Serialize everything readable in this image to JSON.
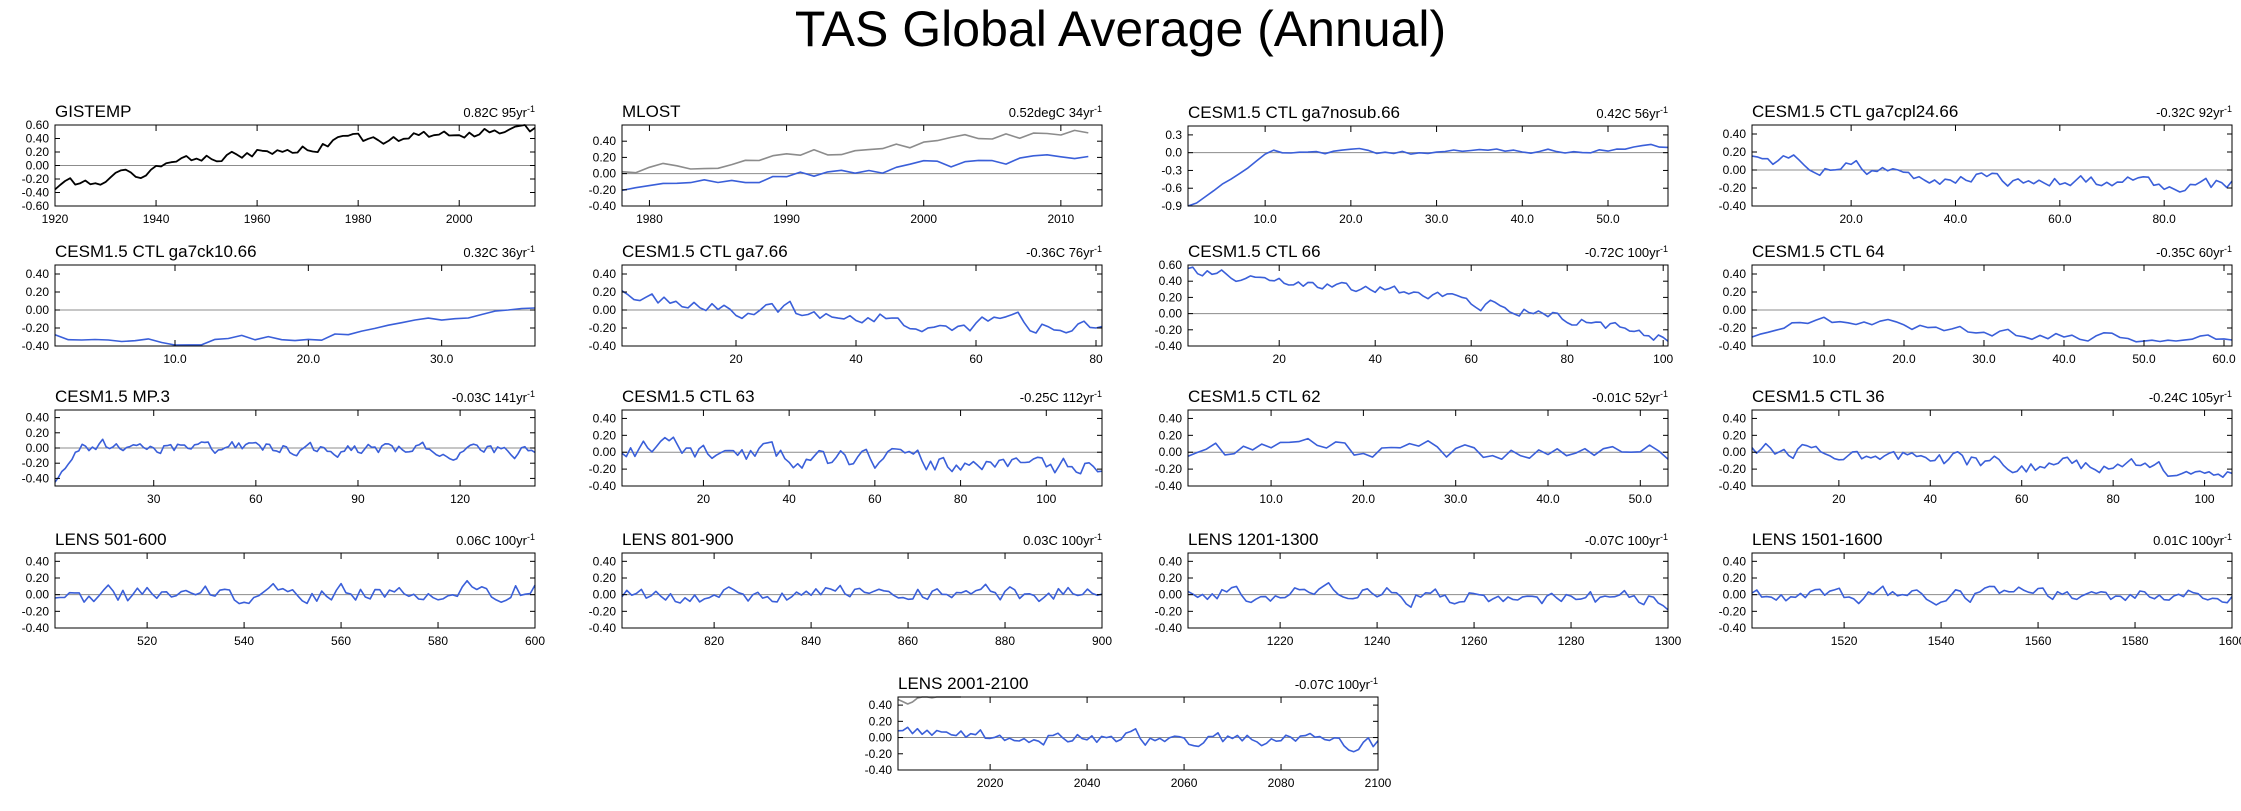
{
  "title": "TAS Global Average (Annual)",
  "colors": {
    "obs": "#000000",
    "mlost_obs": "#8c8c8c",
    "model": "#3a5fd9",
    "zero_line": "#8c8c8c",
    "axis": "#000000"
  },
  "chart_data": [
    {
      "type": "line",
      "title": "GISTEMP",
      "annotation": "0.82C 95yr",
      "annotation_sup": "-1",
      "xlim": [
        1920,
        2015
      ],
      "ylim": [
        -0.6,
        0.6
      ],
      "xticks": [
        1920,
        1940,
        1960,
        1980,
        2000
      ],
      "xtick_labels": [
        "1920",
        "1940",
        "1960",
        "1980",
        "2000"
      ],
      "yticks": [
        -0.6,
        -0.4,
        -0.2,
        0,
        0.2,
        0.4,
        0.6
      ],
      "ytick_labels": [
        "-0.60",
        "-0.40",
        "-0.20",
        "0.00",
        "0.20",
        "0.40",
        "0.60"
      ],
      "series": [
        {
          "color": "#000000",
          "gen": {
            "a": -0.35,
            "b": 0.52,
            "curv": 0.35,
            "amp": 0.07,
            "seed": 1,
            "n": 96,
            "x0": 1920,
            "x1": 2015
          }
        }
      ]
    },
    {
      "type": "line",
      "title": "MLOST",
      "annotation": "0.52degC 34yr",
      "annotation_sup": "-1",
      "xlim": [
        1978,
        2013
      ],
      "ylim": [
        -0.4,
        0.6
      ],
      "xticks": [
        1980,
        1990,
        2000,
        2010
      ],
      "xtick_labels": [
        "1980",
        "1990",
        "2000",
        "2010"
      ],
      "yticks": [
        -0.4,
        -0.2,
        0,
        0.2,
        0.4
      ],
      "ytick_labels": [
        "-0.40",
        "-0.20",
        "0.00",
        "0.20",
        "0.40"
      ],
      "series": [
        {
          "color": "#8c8c8c",
          "gen": {
            "a": 0.02,
            "b": 0.52,
            "curv": 0,
            "amp": 0.06,
            "seed": 2,
            "n": 35,
            "x0": 1978,
            "x1": 2012
          }
        },
        {
          "color": "#3a5fd9",
          "gen": {
            "a": -0.22,
            "b": 0.22,
            "curv": 0,
            "amp": 0.06,
            "seed": 3,
            "n": 35,
            "x0": 1978,
            "x1": 2012
          }
        }
      ]
    },
    {
      "type": "line",
      "title": "CESM1.5 CTL ga7nosub.66",
      "annotation": "0.42C 56yr",
      "annotation_sup": "-1",
      "xlim": [
        1,
        57
      ],
      "ylim": [
        -0.9,
        0.45
      ],
      "xticks": [
        10,
        20,
        30,
        40,
        50
      ],
      "xtick_labels": [
        "10.0",
        "20.0",
        "30.0",
        "40.0",
        "50.0"
      ],
      "yticks": [
        -0.9,
        -0.6,
        -0.3,
        0,
        0.3
      ],
      "ytick_labels": [
        "-0.9",
        "-0.6",
        "-0.3",
        "0.0",
        "0.3"
      ],
      "series": [
        {
          "color": "#3a5fd9",
          "gen": {
            "a": 0.08,
            "b": 0.12,
            "curv": -0.2,
            "amp": 0.04,
            "seed": 4,
            "n": 57,
            "x0": 1,
            "x1": 57,
            "spin": -0.95,
            "spin_len": 10
          }
        }
      ]
    },
    {
      "type": "line",
      "title": "CESM1.5 CTL ga7cpl24.66",
      "annotation": "-0.32C 92yr",
      "annotation_sup": "-1",
      "xlim": [
        1,
        93
      ],
      "ylim": [
        -0.4,
        0.5
      ],
      "xticks": [
        20,
        40,
        60,
        80
      ],
      "xtick_labels": [
        "20.0",
        "40.0",
        "60.0",
        "80.0"
      ],
      "yticks": [
        -0.4,
        -0.2,
        0,
        0.2,
        0.4
      ],
      "ytick_labels": [
        "-0.40",
        "-0.20",
        "0.00",
        "0.20",
        "0.40"
      ],
      "series": [
        {
          "color": "#3a5fd9",
          "gen": {
            "a": 0.12,
            "b": -0.18,
            "curv": -0.15,
            "amp": 0.07,
            "seed": 5,
            "n": 93,
            "x0": 1,
            "x1": 93
          }
        }
      ]
    },
    {
      "type": "line",
      "title": "CESM1.5 CTL ga7ck10.66",
      "annotation": "0.32C 36yr",
      "annotation_sup": "-1",
      "xlim": [
        1,
        37
      ],
      "ylim": [
        -0.4,
        0.5
      ],
      "xticks": [
        10,
        20,
        30
      ],
      "xtick_labels": [
        "10.0",
        "20.0",
        "30.0"
      ],
      "yticks": [
        -0.4,
        -0.2,
        0,
        0.2,
        0.4
      ],
      "ytick_labels": [
        "-0.40",
        "-0.20",
        "0.00",
        "0.20",
        "0.40"
      ],
      "series": [
        {
          "color": "#3a5fd9",
          "gen": {
            "a": -0.3,
            "b": 0.05,
            "curv": -0.35,
            "amp": 0.04,
            "seed": 6,
            "n": 37,
            "x0": 1,
            "x1": 37
          }
        }
      ]
    },
    {
      "type": "line",
      "title": "CESM1.5 CTL ga7.66",
      "annotation": "-0.36C 76yr",
      "annotation_sup": "-1",
      "xlim": [
        1,
        81
      ],
      "ylim": [
        -0.4,
        0.5
      ],
      "xticks": [
        20,
        40,
        60,
        80
      ],
      "xtick_labels": [
        "20",
        "40",
        "60",
        "80"
      ],
      "yticks": [
        -0.4,
        -0.2,
        0,
        0.2,
        0.4
      ],
      "ytick_labels": [
        "-0.40",
        "-0.20",
        "0.00",
        "0.20",
        "0.40"
      ],
      "series": [
        {
          "color": "#3a5fd9",
          "gen": {
            "a": 0.15,
            "b": -0.2,
            "curv": -0.1,
            "amp": 0.08,
            "seed": 7,
            "n": 81,
            "x0": 1,
            "x1": 81
          }
        }
      ]
    },
    {
      "type": "line",
      "title": "CESM1.5 CTL 66",
      "annotation": "-0.72C 100yr",
      "annotation_sup": "-1",
      "xlim": [
        1,
        101
      ],
      "ylim": [
        -0.4,
        0.6
      ],
      "xticks": [
        20,
        40,
        60,
        80,
        100
      ],
      "xtick_labels": [
        "20",
        "40",
        "60",
        "80",
        "100"
      ],
      "yticks": [
        -0.4,
        -0.2,
        0,
        0.2,
        0.4,
        0.6
      ],
      "ytick_labels": [
        "-0.40",
        "-0.20",
        "0.00",
        "0.20",
        "0.40",
        "0.60"
      ],
      "series": [
        {
          "color": "#3a5fd9",
          "gen": {
            "a": 0.5,
            "b": -0.3,
            "curv": 0.25,
            "amp": 0.06,
            "seed": 8,
            "n": 101,
            "x0": 1,
            "x1": 101
          }
        }
      ]
    },
    {
      "type": "line",
      "title": "CESM1.5 CTL 64",
      "annotation": "-0.35C 60yr",
      "annotation_sup": "-1",
      "xlim": [
        1,
        61
      ],
      "ylim": [
        -0.4,
        0.5
      ],
      "xticks": [
        10,
        20,
        30,
        40,
        50,
        60
      ],
      "xtick_labels": [
        "10.0",
        "20.0",
        "30.0",
        "40.0",
        "50.0",
        "60.0"
      ],
      "yticks": [
        -0.4,
        -0.2,
        0,
        0.2,
        0.4
      ],
      "ytick_labels": [
        "-0.40",
        "-0.20",
        "0.00",
        "0.20",
        "0.40"
      ],
      "series": [
        {
          "color": "#3a5fd9",
          "gen": {
            "a": 0.0,
            "b": -0.3,
            "curv": -0.2,
            "amp": 0.05,
            "seed": 9,
            "n": 61,
            "x0": 1,
            "x1": 61,
            "spin": -0.3,
            "spin_len": 8
          }
        }
      ]
    },
    {
      "type": "line",
      "title": "CESM1.5 MP.3",
      "annotation": "-0.03C 141yr",
      "annotation_sup": "-1",
      "xlim": [
        1,
        142
      ],
      "ylim": [
        -0.5,
        0.5
      ],
      "xticks": [
        30,
        60,
        90,
        120
      ],
      "xtick_labels": [
        "30",
        "60",
        "90",
        "120"
      ],
      "yticks": [
        -0.4,
        -0.2,
        0,
        0.2,
        0.4
      ],
      "ytick_labels": [
        "-0.40",
        "-0.20",
        "0.00",
        "0.20",
        "0.40"
      ],
      "series": [
        {
          "color": "#3a5fd9",
          "gen": {
            "a": 0.05,
            "b": -0.05,
            "curv": 0,
            "amp": 0.07,
            "seed": 10,
            "n": 142,
            "x0": 1,
            "x1": 142,
            "spin": -0.45,
            "spin_len": 8
          }
        }
      ]
    },
    {
      "type": "line",
      "title": "CESM1.5 CTL 63",
      "annotation": "-0.25C 112yr",
      "annotation_sup": "-1",
      "xlim": [
        1,
        113
      ],
      "ylim": [
        -0.4,
        0.5
      ],
      "xticks": [
        20,
        40,
        60,
        80,
        100
      ],
      "xtick_labels": [
        "20",
        "40",
        "60",
        "80",
        "100"
      ],
      "yticks": [
        -0.4,
        -0.2,
        0,
        0.2,
        0.4
      ],
      "ytick_labels": [
        "-0.40",
        "-0.20",
        "0.00",
        "0.20",
        "0.40"
      ],
      "series": [
        {
          "color": "#3a5fd9",
          "gen": {
            "a": 0.05,
            "b": -0.15,
            "curv": -0.1,
            "amp": 0.1,
            "seed": 11,
            "n": 113,
            "x0": 1,
            "x1": 113
          }
        }
      ]
    },
    {
      "type": "line",
      "title": "CESM1.5 CTL 62",
      "annotation": "-0.01C 52yr",
      "annotation_sup": "-1",
      "xlim": [
        1,
        53
      ],
      "ylim": [
        -0.4,
        0.5
      ],
      "xticks": [
        10,
        20,
        30,
        40,
        50
      ],
      "xtick_labels": [
        "10.0",
        "20.0",
        "30.0",
        "40.0",
        "50.0"
      ],
      "yticks": [
        -0.4,
        -0.2,
        0,
        0.2,
        0.4
      ],
      "ytick_labels": [
        "-0.40",
        "-0.20",
        "0.00",
        "0.20",
        "0.40"
      ],
      "series": [
        {
          "color": "#3a5fd9",
          "gen": {
            "a": 0.0,
            "b": 0.0,
            "curv": 0,
            "amp": 0.1,
            "seed": 12,
            "n": 53,
            "x0": 1,
            "x1": 53
          }
        }
      ]
    },
    {
      "type": "line",
      "title": "CESM1.5 CTL 36",
      "annotation": "-0.24C 105yr",
      "annotation_sup": "-1",
      "xlim": [
        1,
        106
      ],
      "ylim": [
        -0.4,
        0.5
      ],
      "xticks": [
        20,
        40,
        60,
        80,
        100
      ],
      "xtick_labels": [
        "20",
        "40",
        "60",
        "80",
        "100"
      ],
      "yticks": [
        -0.4,
        -0.2,
        0,
        0.2,
        0.4
      ],
      "ytick_labels": [
        "-0.40",
        "-0.20",
        "0.00",
        "0.20",
        "0.40"
      ],
      "series": [
        {
          "color": "#3a5fd9",
          "gen": {
            "a": 0.08,
            "b": -0.22,
            "curv": -0.1,
            "amp": 0.08,
            "seed": 13,
            "n": 106,
            "x0": 1,
            "x1": 106
          }
        }
      ]
    },
    {
      "type": "line",
      "title": "LENS 501-600",
      "annotation": "0.06C 100yr",
      "annotation_sup": "-1",
      "xlim": [
        501,
        600
      ],
      "ylim": [
        -0.4,
        0.5
      ],
      "xticks": [
        520,
        540,
        560,
        580,
        600
      ],
      "xtick_labels": [
        "520",
        "540",
        "560",
        "580",
        "600"
      ],
      "yticks": [
        -0.4,
        -0.2,
        0,
        0.2,
        0.4
      ],
      "ytick_labels": [
        "-0.40",
        "-0.20",
        "0.00",
        "0.20",
        "0.40"
      ],
      "series": [
        {
          "color": "#3a5fd9",
          "gen": {
            "a": -0.02,
            "b": 0.06,
            "curv": 0,
            "amp": 0.1,
            "seed": 14,
            "n": 100,
            "x0": 501,
            "x1": 600
          }
        }
      ]
    },
    {
      "type": "line",
      "title": "LENS 801-900",
      "annotation": "0.03C 100yr",
      "annotation_sup": "-1",
      "xlim": [
        801,
        900
      ],
      "ylim": [
        -0.4,
        0.5
      ],
      "xticks": [
        820,
        840,
        860,
        880,
        900
      ],
      "xtick_labels": [
        "820",
        "840",
        "860",
        "880",
        "900"
      ],
      "yticks": [
        -0.4,
        -0.2,
        0,
        0.2,
        0.4
      ],
      "ytick_labels": [
        "-0.40",
        "-0.20",
        "0.00",
        "0.20",
        "0.40"
      ],
      "series": [
        {
          "color": "#3a5fd9",
          "gen": {
            "a": -0.02,
            "b": 0.03,
            "curv": 0,
            "amp": 0.09,
            "seed": 15,
            "n": 100,
            "x0": 801,
            "x1": 900
          }
        }
      ]
    },
    {
      "type": "line",
      "title": "LENS 1201-1300",
      "annotation": "-0.07C 100yr",
      "annotation_sup": "-1",
      "xlim": [
        1201,
        1300
      ],
      "ylim": [
        -0.4,
        0.5
      ],
      "xticks": [
        1220,
        1240,
        1260,
        1280,
        1300
      ],
      "xtick_labels": [
        "1220",
        "1240",
        "1260",
        "1280",
        "1300"
      ],
      "yticks": [
        -0.4,
        -0.2,
        0,
        0.2,
        0.4
      ],
      "ytick_labels": [
        "-0.40",
        "-0.20",
        "0.00",
        "0.20",
        "0.40"
      ],
      "series": [
        {
          "color": "#3a5fd9",
          "gen": {
            "a": 0.03,
            "b": -0.07,
            "curv": 0,
            "amp": 0.09,
            "seed": 16,
            "n": 100,
            "x0": 1201,
            "x1": 1300
          }
        }
      ]
    },
    {
      "type": "line",
      "title": "LENS 1501-1600",
      "annotation": "0.01C 100yr",
      "annotation_sup": "-1",
      "xlim": [
        1501,
        1600
      ],
      "ylim": [
        -0.4,
        0.5
      ],
      "xticks": [
        1520,
        1540,
        1560,
        1580,
        1600
      ],
      "xtick_labels": [
        "1520",
        "1540",
        "1560",
        "1580",
        "1600"
      ],
      "yticks": [
        -0.4,
        -0.2,
        0,
        0.2,
        0.4
      ],
      "ytick_labels": [
        "-0.40",
        "-0.20",
        "0.00",
        "0.20",
        "0.40"
      ],
      "series": [
        {
          "color": "#3a5fd9",
          "gen": {
            "a": 0.0,
            "b": 0.01,
            "curv": 0,
            "amp": 0.08,
            "seed": 17,
            "n": 100,
            "x0": 1501,
            "x1": 1600
          }
        }
      ]
    },
    {
      "type": "line",
      "title": "LENS 2001-2100",
      "annotation": "-0.07C 100yr",
      "annotation_sup": "-1",
      "xlim": [
        2001,
        2100
      ],
      "ylim": [
        -0.4,
        0.5
      ],
      "xticks": [
        2020,
        2040,
        2060,
        2080,
        2100
      ],
      "xtick_labels": [
        "2020",
        "2040",
        "2060",
        "2080",
        "2100"
      ],
      "yticks": [
        -0.4,
        -0.2,
        0,
        0.2,
        0.4
      ],
      "ytick_labels": [
        "-0.40",
        "-0.20",
        "0.00",
        "0.20",
        "0.40"
      ],
      "series": [
        {
          "color": "#8c8c8c",
          "gen": {
            "a": 0.45,
            "b": 0.6,
            "curv": 0,
            "amp": 0.05,
            "seed": 18,
            "n": 14,
            "x0": 2001,
            "x1": 2014
          }
        },
        {
          "color": "#3a5fd9",
          "gen": {
            "a": 0.04,
            "b": -0.07,
            "curv": 0,
            "amp": 0.08,
            "seed": 19,
            "n": 100,
            "x0": 2001,
            "x1": 2100
          }
        }
      ]
    }
  ]
}
